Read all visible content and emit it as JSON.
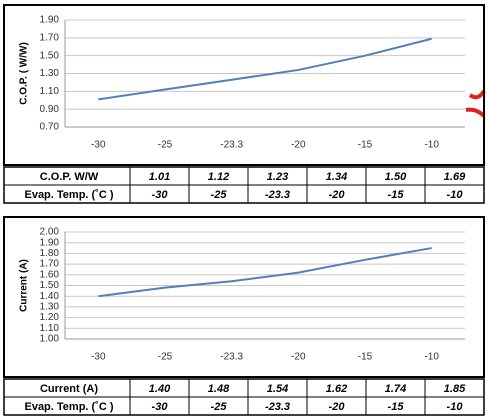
{
  "chart_data": [
    {
      "type": "line",
      "y_label": "C.O.P. ( W/W)",
      "x_label": "Evap. Temp. (˚C )",
      "categories": [
        "-30",
        "-25",
        "-23.3",
        "-20",
        "-15",
        "-10"
      ],
      "series": [
        {
          "name": "C.O.P. W/W",
          "color": "#4f81bd",
          "values": [
            1.01,
            1.12,
            1.23,
            1.34,
            1.5,
            1.69
          ],
          "value_labels": [
            "1.01",
            "1.12",
            "1.23",
            "1.34",
            "1.50",
            "1.69"
          ]
        }
      ],
      "ylim": [
        0.7,
        1.9
      ],
      "yticks": [
        {
          "value": 0.7,
          "label": "0.70"
        },
        {
          "value": 0.9,
          "label": "0.90"
        },
        {
          "value": 1.1,
          "label": "1.10"
        },
        {
          "value": 1.3,
          "label": "1.30"
        },
        {
          "value": 1.5,
          "label": "1.50"
        },
        {
          "value": 1.7,
          "label": "1.70"
        },
        {
          "value": 1.9,
          "label": "1.90"
        }
      ],
      "grid": true
    },
    {
      "type": "line",
      "y_label": "Current (A)",
      "x_label": "Evap. Temp. (˚C )",
      "categories": [
        "-30",
        "-25",
        "-23.3",
        "-20",
        "-15",
        "-10"
      ],
      "series": [
        {
          "name": "Current (A)",
          "color": "#4f81bd",
          "values": [
            1.4,
            1.48,
            1.54,
            1.62,
            1.74,
            1.85
          ],
          "value_labels": [
            "1.40",
            "1.48",
            "1.54",
            "1.62",
            "1.74",
            "1.85"
          ]
        }
      ],
      "ylim": [
        1.0,
        2.0
      ],
      "yticks": [
        {
          "value": 1.0,
          "label": "1.00"
        },
        {
          "value": 1.1,
          "label": "1.10"
        },
        {
          "value": 1.2,
          "label": "1.20"
        },
        {
          "value": 1.3,
          "label": "1.30"
        },
        {
          "value": 1.4,
          "label": "1.40"
        },
        {
          "value": 1.5,
          "label": "1.50"
        },
        {
          "value": 1.6,
          "label": "1.60"
        },
        {
          "value": 1.7,
          "label": "1.70"
        },
        {
          "value": 1.8,
          "label": "1.80"
        },
        {
          "value": 1.9,
          "label": "1.90"
        },
        {
          "value": 2.0,
          "label": "2.00"
        }
      ],
      "grid": true
    }
  ]
}
